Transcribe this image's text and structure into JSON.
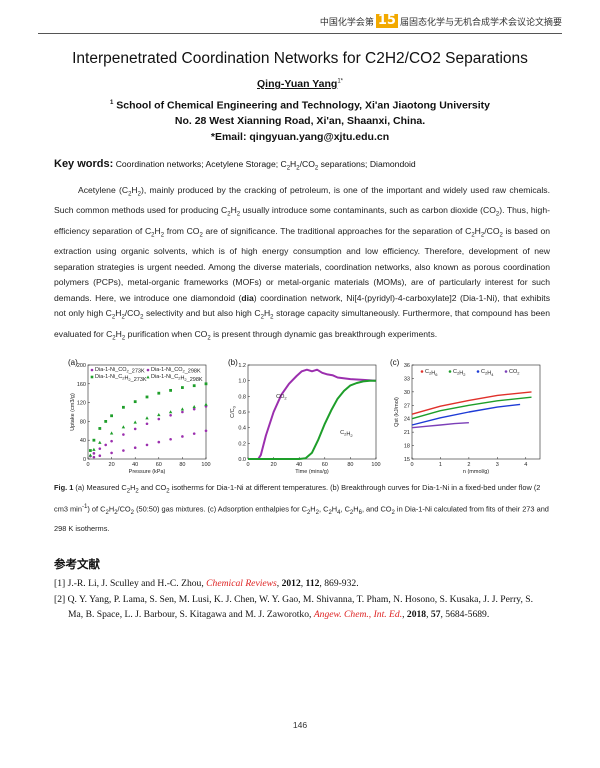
{
  "header": {
    "prefix": "中国化学会第",
    "num": "15",
    "suffix": "届固态化学与无机合成学术会议论文摘要"
  },
  "title": "Interpenetrated Coordination Networks for C2H2/CO2 Separations",
  "author": {
    "name": "Qing-Yuan Yang",
    "sup": "1*"
  },
  "affiliation": {
    "sup": "1",
    "line1": "School of Chemical Engineering and Technology, Xi'an Jiaotong University",
    "line2": "No. 28 West Xianning Road, Xi'an, Shaanxi, China."
  },
  "email": "*Email: qingyuan.yang@xjtu.edu.cn",
  "keywords": {
    "label": "Key words:",
    "items": [
      "Coordination networks",
      "Acetylene Storage",
      "C2H2/CO2 separations",
      "Diamondoid"
    ]
  },
  "abstract": "Acetylene (C2H2), mainly produced by the cracking of petroleum, is one of the important and widely used raw chemicals. Such common methods used for producing C2H2 usually introduce some contaminants, such as carbon dioxide (CO2). Thus, high-efficiency separation of C2H2 from CO2 are of significance. The traditional approaches for the separation of C2H2/CO2 is based on extraction using organic solvents, which is of high energy consumption and low efficiency. Therefore, development of new separation strategies is urgent needed. Among the diverse materials, coordination networks, also known as porous coordination polymers (PCPs), metal-organic frameworks (MOFs) or metal-organic materials (MOMs), are of particularly interest for such demands. Here, we introduce one diamondoid (dia) coordination network, Ni[4-(pyridyl)-4-carboxylate]2 (Dia-1-Ni), that exhibits not only high C2H2/CO2 selectivity and but also high C2H2 storage capacity simultaneously. Furthermore, that compound has been evaluated for C2H2 purification when CO2 is present through dynamic gas breakthrough experiments.",
  "caption": "Fig. 1 (a) Measured C2H2 and CO2 isotherms for Dia-1-Ni at different temperatures. (b) Breakthrough curves for Dia-1-Ni in a fixed-bed under flow (2 cm3 min-1) of C2H2/CO2 (50:50) gas mixtures. (c) Adsorption enthalpies for C2H2, C2H4, C2H6, and CO2 in Dia-1-Ni calculated from fits of their 273 and 298 K isotherms.",
  "references_heading": "参考文献",
  "references": [
    {
      "num": "[1]",
      "authors": "J.-R. Li, J. Sculley and H.-C. Zhou,",
      "journal": "Chemical Reviews",
      "year": "2012",
      "vol": "112",
      "pages": "869-932."
    },
    {
      "num": "[2]",
      "authors": "Q. Y. Yang, P. Lama, S. Sen, M. Lusi, K. J. Chen, W. Y. Gao, M. Shivanna, T. Pham, N. Hosono, S. Kusaka, J. J. Perry, S. Ma, B. Space, L. J. Barbour, S. Kitagawa and M. J. Zaworotko,",
      "journal": "Angew. Chem., Int. Ed.",
      "year": "2018",
      "vol": "57",
      "pages": "5684-5689."
    }
  ],
  "page_number": "146",
  "chart_data": [
    {
      "panel": "(a)",
      "type": "scatter",
      "xlabel": "Pressure (kPa)",
      "ylabel": "Uptake (cm3/g)",
      "xlim": [
        0,
        100
      ],
      "ylim": [
        0,
        200
      ],
      "xticks": [
        0,
        20,
        40,
        60,
        80,
        100
      ],
      "yticks": [
        0,
        40,
        80,
        120,
        160,
        200
      ],
      "legend": "top-left",
      "series": [
        {
          "name": "Dia-1-Ni_CO2_273K",
          "color": "#9b2fae",
          "marker": "circle",
          "x": [
            2,
            5,
            10,
            15,
            20,
            30,
            40,
            50,
            60,
            70,
            80,
            90,
            100
          ],
          "y": [
            6,
            12,
            22,
            30,
            38,
            52,
            64,
            75,
            85,
            93,
            100,
            106,
            112
          ]
        },
        {
          "name": "Dia-1-Ni_CO2_298K",
          "color": "#9b2fae",
          "marker": "circle",
          "x": [
            5,
            10,
            20,
            30,
            40,
            50,
            60,
            70,
            80,
            90,
            100
          ],
          "y": [
            4,
            7,
            13,
            18,
            24,
            30,
            36,
            42,
            48,
            54,
            60
          ]
        },
        {
          "name": "Dia-1-Ni_C2H2_273K",
          "color": "#1e9e2a",
          "marker": "square",
          "x": [
            2,
            5,
            10,
            15,
            20,
            30,
            40,
            50,
            60,
            70,
            80,
            90,
            100
          ],
          "y": [
            18,
            40,
            65,
            80,
            92,
            110,
            122,
            132,
            140,
            146,
            152,
            156,
            160
          ]
        },
        {
          "name": "Dia-1-Ni_C2H2_298K",
          "color": "#1e9e2a",
          "marker": "triangle",
          "x": [
            2,
            5,
            10,
            20,
            30,
            40,
            50,
            60,
            70,
            80,
            90,
            100
          ],
          "y": [
            8,
            20,
            35,
            55,
            68,
            78,
            87,
            94,
            100,
            106,
            111,
            116
          ]
        }
      ]
    },
    {
      "panel": "(b)",
      "type": "line",
      "xlabel": "Time (mins/g)",
      "ylabel": "C/C0",
      "xlim": [
        0,
        100
      ],
      "ylim": [
        0,
        1.2
      ],
      "xticks": [
        0,
        20,
        40,
        60,
        80,
        100
      ],
      "yticks": [
        0.0,
        0.2,
        0.4,
        0.6,
        0.8,
        1.0,
        1.2
      ],
      "annotations": [
        "CO2",
        "C2H2"
      ],
      "series": [
        {
          "name": "CO2",
          "color": "#9b2fae",
          "x": [
            0,
            8,
            10,
            14,
            20,
            26,
            32,
            38,
            42,
            46,
            50,
            54,
            58,
            62,
            66,
            70,
            80,
            90,
            100
          ],
          "y": [
            0,
            0,
            0.05,
            0.3,
            0.6,
            0.82,
            0.96,
            1.06,
            1.12,
            1.14,
            1.12,
            1.14,
            1.1,
            1.08,
            1.07,
            1.04,
            1.02,
            1.01,
            1.0
          ]
        },
        {
          "name": "C2H2",
          "color": "#1e9e2a",
          "x": [
            0,
            40,
            45,
            50,
            55,
            60,
            65,
            70,
            75,
            80,
            85,
            90,
            95,
            100
          ],
          "y": [
            0,
            0,
            0.01,
            0.08,
            0.25,
            0.45,
            0.62,
            0.77,
            0.87,
            0.94,
            0.97,
            0.99,
            1.0,
            1.0
          ]
        }
      ]
    },
    {
      "panel": "(c)",
      "type": "line",
      "xlabel": "n (mmol/g)",
      "ylabel": "Qst (kJ/mol)",
      "xlim": [
        0,
        4.5
      ],
      "ylim": [
        15,
        36
      ],
      "xticks": [
        0,
        1,
        2,
        3,
        4
      ],
      "yticks": [
        15,
        18,
        21,
        24,
        27,
        30,
        33,
        36
      ],
      "legend": "top",
      "series": [
        {
          "name": "C2H6",
          "color": "#e0302a",
          "x": [
            0,
            1,
            2,
            3,
            4.2
          ],
          "y": [
            25.0,
            26.8,
            28.1,
            29.2,
            30.0
          ]
        },
        {
          "name": "C2H2",
          "color": "#1e9e2a",
          "x": [
            0,
            1,
            2,
            3,
            4.2
          ],
          "y": [
            24.0,
            25.8,
            27.0,
            28.0,
            28.8
          ]
        },
        {
          "name": "C2H4",
          "color": "#1d3bd6",
          "x": [
            0,
            1,
            2,
            3,
            3.8
          ],
          "y": [
            22.6,
            24.2,
            25.5,
            26.6,
            27.2
          ]
        },
        {
          "name": "CO2",
          "color": "#7b3fb8",
          "x": [
            0,
            0.5,
            1,
            1.5,
            2.0
          ],
          "y": [
            22.0,
            22.3,
            22.6,
            22.9,
            23.1
          ]
        }
      ]
    }
  ]
}
